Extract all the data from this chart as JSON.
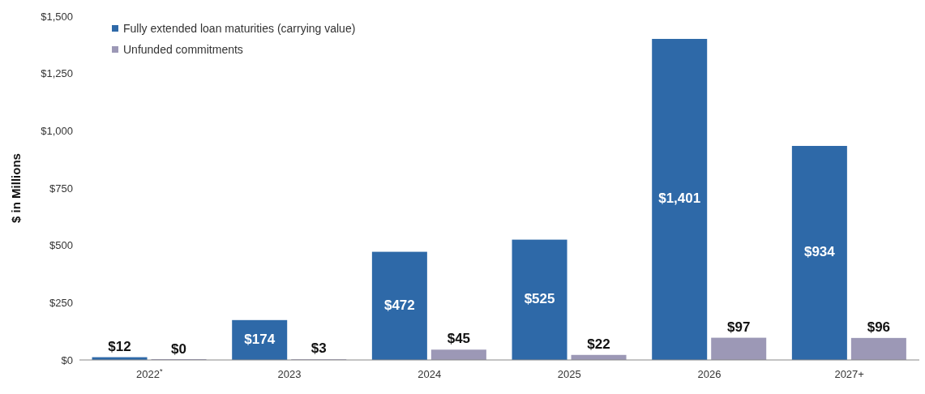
{
  "chart_data": {
    "type": "bar",
    "ylabel": "$ in Millions",
    "categories": [
      "2022$^{*}$",
      "2023",
      "2024",
      "2025",
      "2026",
      "2027+"
    ],
    "series": [
      {
        "name": "Fully extended loan maturities (carrying value)",
        "color": "#2e69a8",
        "values": [
          12,
          174,
          472,
          525,
          1401,
          934
        ],
        "value_labels": [
          "$12",
          "$174",
          "$472",
          "$525",
          "$1,401",
          "$934"
        ]
      },
      {
        "name": "Unfunded commitments",
        "color": "#9c98b6",
        "values": [
          0,
          3,
          45,
          22,
          97,
          96
        ],
        "value_labels": [
          "$0",
          "$3",
          "$45",
          "$22",
          "$97",
          "$96"
        ]
      }
    ],
    "ylim": [
      0,
      1500
    ],
    "yticks": [
      {
        "value": 0,
        "label": "$0"
      },
      {
        "value": 250,
        "label": "$250"
      },
      {
        "value": 500,
        "label": "$500"
      },
      {
        "value": 750,
        "label": "$750"
      },
      {
        "value": 1000,
        "label": "$1,000"
      },
      {
        "value": 1250,
        "label": "$1,250"
      },
      {
        "value": 1500,
        "label": "$1,500"
      }
    ],
    "grid": false,
    "legend": "top left"
  }
}
